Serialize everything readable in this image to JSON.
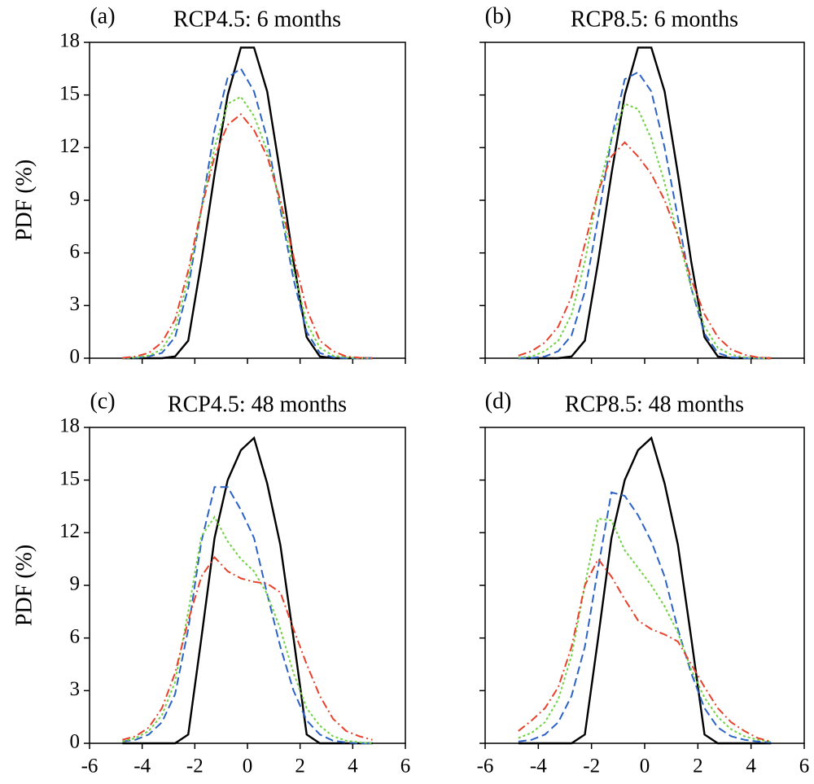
{
  "chart_data": [
    {
      "type": "line",
      "label": "(a)",
      "title": "RCP4.5: 6 months",
      "ylabel": "PDF (%)",
      "x": [
        -4.75,
        -4.25,
        -3.75,
        -3.25,
        -2.75,
        -2.25,
        -1.75,
        -1.25,
        -0.75,
        -0.25,
        0.25,
        0.75,
        1.25,
        1.75,
        2.25,
        2.75,
        3.25,
        3.75,
        4.25,
        4.75
      ],
      "series": [
        {
          "color": "#000000",
          "dash": "solid",
          "values": [
            0,
            0,
            0,
            0,
            0.1,
            1,
            5.5,
            10.5,
            15,
            17.7,
            17.7,
            15.2,
            10.5,
            5.5,
            1.2,
            0.1,
            0,
            0,
            0,
            0
          ]
        },
        {
          "color": "#2b62c4",
          "dash": "dashed",
          "values": [
            0,
            0.02,
            0.1,
            0.3,
            1.2,
            4,
            8.5,
            13,
            16,
            16.5,
            15.2,
            12.5,
            8.5,
            4.5,
            1.5,
            0.3,
            0.05,
            0,
            0,
            0
          ]
        },
        {
          "color": "#6fd13f",
          "dash": "dotted",
          "values": [
            0,
            0.03,
            0.15,
            0.5,
            1.7,
            4.5,
            8.5,
            12,
            14.5,
            14.9,
            13.8,
            11.8,
            8.8,
            5,
            2,
            0.6,
            0.15,
            0.05,
            0,
            0
          ]
        },
        {
          "color": "#e8402a",
          "dash": "dashdot",
          "values": [
            0.02,
            0.1,
            0.3,
            0.9,
            2.2,
            5,
            8.5,
            11.5,
            13.3,
            13.9,
            13,
            11.5,
            9,
            5.8,
            2.8,
            1,
            0.4,
            0.1,
            0.03,
            0
          ]
        }
      ],
      "xlim": [
        -6,
        6
      ],
      "ylim": [
        0,
        18
      ],
      "xticks": [
        -6,
        -4,
        -2,
        0,
        2,
        4,
        6
      ],
      "yticks": [
        0,
        3,
        6,
        9,
        12,
        15,
        18
      ],
      "xtick_labels": false,
      "ytick_labels": true
    },
    {
      "type": "line",
      "label": "(b)",
      "title": "RCP8.5: 6 months",
      "x": [
        -4.75,
        -4.25,
        -3.75,
        -3.25,
        -2.75,
        -2.25,
        -1.75,
        -1.25,
        -0.75,
        -0.25,
        0.25,
        0.75,
        1.25,
        1.75,
        2.25,
        2.75,
        3.25,
        3.75,
        4.25,
        4.75
      ],
      "series": [
        {
          "color": "#000000",
          "dash": "solid",
          "values": [
            0,
            0,
            0,
            0,
            0.1,
            1,
            5.5,
            10.5,
            15,
            17.7,
            17.7,
            15.2,
            10.5,
            5.5,
            1.2,
            0.1,
            0,
            0,
            0,
            0
          ]
        },
        {
          "color": "#2b62c4",
          "dash": "dashed",
          "values": [
            0,
            0.02,
            0.1,
            0.4,
            1.3,
            3.8,
            8,
            12.5,
            15.9,
            16.3,
            15.2,
            12,
            8,
            4,
            1.4,
            0.3,
            0.05,
            0,
            0,
            0
          ]
        },
        {
          "color": "#6fd13f",
          "dash": "dotted",
          "values": [
            0.03,
            0.1,
            0.4,
            1,
            2.5,
            5.5,
            9.5,
            12.5,
            14.5,
            14.2,
            12.5,
            10,
            7,
            4,
            1.8,
            0.6,
            0.2,
            0.05,
            0,
            0
          ]
        },
        {
          "color": "#e8402a",
          "dash": "dashdot",
          "values": [
            0.15,
            0.4,
            0.9,
            1.8,
            3.5,
            6.5,
            9.5,
            11.5,
            12.3,
            11.5,
            10.5,
            9,
            7,
            4.5,
            2.5,
            1.2,
            0.5,
            0.2,
            0.05,
            0
          ]
        }
      ],
      "xlim": [
        -6,
        6
      ],
      "ylim": [
        0,
        18
      ],
      "xticks": [
        -6,
        -4,
        -2,
        0,
        2,
        4,
        6
      ],
      "yticks": [
        0,
        3,
        6,
        9,
        12,
        15,
        18
      ],
      "xtick_labels": false,
      "ytick_labels": false
    },
    {
      "type": "line",
      "label": "(c)",
      "title": "RCP4.5: 48 months",
      "ylabel": "PDF (%)",
      "x": [
        -4.75,
        -4.25,
        -3.75,
        -3.25,
        -2.75,
        -2.25,
        -1.75,
        -1.25,
        -0.75,
        -0.25,
        0.25,
        0.75,
        1.25,
        1.75,
        2.25,
        2.75,
        3.25,
        3.75,
        4.25,
        4.75
      ],
      "series": [
        {
          "color": "#000000",
          "dash": "solid",
          "values": [
            0,
            0,
            0,
            0,
            0,
            0.5,
            6,
            11.7,
            15,
            16.7,
            17.4,
            14.8,
            11.3,
            6,
            0.5,
            0,
            0,
            0,
            0,
            0
          ]
        },
        {
          "color": "#2b62c4",
          "dash": "dashed",
          "values": [
            0.1,
            0.2,
            0.5,
            1.2,
            2.8,
            6.5,
            11.5,
            14.6,
            14.6,
            13.3,
            11.7,
            8.5,
            5.5,
            3,
            1.3,
            0.5,
            0.15,
            0.05,
            0,
            0
          ]
        },
        {
          "color": "#6fd13f",
          "dash": "dotted",
          "values": [
            0.1,
            0.3,
            0.7,
            1.6,
            3.5,
            7.5,
            11.8,
            12.9,
            11.5,
            10.5,
            9.8,
            8.5,
            6.5,
            4,
            2,
            1,
            0.4,
            0.15,
            0.05,
            0
          ]
        },
        {
          "color": "#e8402a",
          "dash": "dashdot",
          "values": [
            0.2,
            0.4,
            0.9,
            2,
            4,
            7,
            9.5,
            10.6,
            9.8,
            9.4,
            9.2,
            9.1,
            8.6,
            6.5,
            4.5,
            2.7,
            1.4,
            0.7,
            0.4,
            0.2
          ]
        }
      ],
      "xlim": [
        -6,
        6
      ],
      "ylim": [
        0,
        18
      ],
      "xticks": [
        -6,
        -4,
        -2,
        0,
        2,
        4,
        6
      ],
      "yticks": [
        0,
        3,
        6,
        9,
        12,
        15,
        18
      ],
      "xtick_labels": true,
      "ytick_labels": true
    },
    {
      "type": "line",
      "label": "(d)",
      "title": "RCP8.5: 48 months",
      "x": [
        -4.75,
        -4.25,
        -3.75,
        -3.25,
        -2.75,
        -2.25,
        -1.75,
        -1.25,
        -0.75,
        -0.25,
        0.25,
        0.75,
        1.25,
        1.75,
        2.25,
        2.75,
        3.25,
        3.75,
        4.25,
        4.75
      ],
      "series": [
        {
          "color": "#000000",
          "dash": "solid",
          "values": [
            0,
            0,
            0,
            0,
            0,
            0.5,
            6,
            11.7,
            15,
            16.7,
            17.4,
            14.8,
            11.3,
            6,
            0.5,
            0,
            0,
            0,
            0,
            0
          ]
        },
        {
          "color": "#2b62c4",
          "dash": "dashed",
          "values": [
            0.1,
            0.2,
            0.5,
            1.2,
            2.7,
            5.5,
            10,
            14.3,
            14.1,
            13,
            11.5,
            9.5,
            6.5,
            4,
            2,
            0.9,
            0.4,
            0.2,
            0.1,
            0.05
          ]
        },
        {
          "color": "#6fd13f",
          "dash": "dotted",
          "values": [
            0.3,
            0.6,
            1.2,
            2.5,
            5,
            9,
            12.8,
            12.7,
            11,
            10,
            9,
            7.8,
            6.3,
            4.2,
            2.6,
            1.5,
            0.8,
            0.4,
            0.2,
            0.1
          ]
        },
        {
          "color": "#e8402a",
          "dash": "dashdot",
          "values": [
            0.7,
            1.3,
            2,
            3.2,
            5.5,
            9,
            10.5,
            9.5,
            8.2,
            7,
            6.5,
            6.2,
            5.8,
            4.5,
            3.2,
            2,
            1.2,
            0.7,
            0.3,
            0.1
          ]
        }
      ],
      "xlim": [
        -6,
        6
      ],
      "ylim": [
        0,
        18
      ],
      "xticks": [
        -6,
        -4,
        -2,
        0,
        2,
        4,
        6
      ],
      "yticks": [
        0,
        3,
        6,
        9,
        12,
        15,
        18
      ],
      "xtick_labels": true,
      "ytick_labels": false
    }
  ]
}
